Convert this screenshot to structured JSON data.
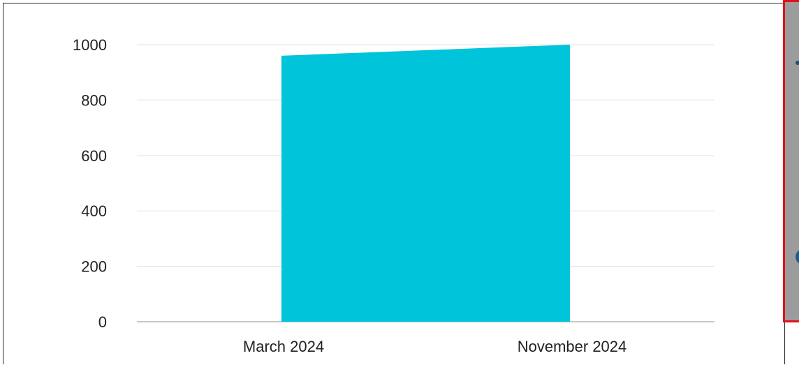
{
  "chart_data": {
    "type": "area",
    "x": [
      "March 2024",
      "November 2024"
    ],
    "categories": [
      "March 2024",
      "November 2024"
    ],
    "series": [
      {
        "values": [
          960,
          1000
        ],
        "color": "#00c4d9"
      }
    ],
    "title": "",
    "xlabel": "",
    "ylabel": "",
    "ylim": [
      0,
      1000
    ],
    "yticks": [
      0,
      200,
      400,
      600,
      800,
      1000
    ],
    "ytick_labels": [
      "0",
      "200",
      "400",
      "600",
      "800",
      "1000"
    ],
    "grid": true,
    "legend": "none",
    "gridline_color": "#e6e6e6",
    "axis_color": "#c8c8c8"
  },
  "side_panel": {
    "border_color": "#e0101c",
    "fill_color": "#9c9c9c",
    "dot_icon": "dot-icon",
    "circle_icon": "circle-icon"
  }
}
